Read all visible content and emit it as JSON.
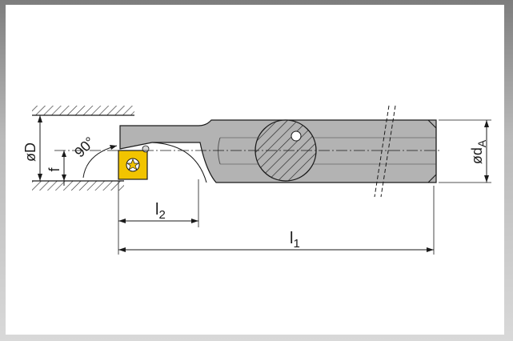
{
  "labels": {
    "diameter_D": "øD",
    "offset_f": "f",
    "angle": "90°",
    "length_l2_base": "l",
    "length_l2_sub": "2",
    "length_l1_base": "l",
    "length_l1_sub": "1",
    "diameter_dA_base": "ød",
    "diameter_dA_sub": "A"
  },
  "colors": {
    "shank": "#b3b3b3",
    "shank_dark": "#8f8f8f",
    "insert": "#f2c400",
    "line": "#1a1a1a"
  }
}
